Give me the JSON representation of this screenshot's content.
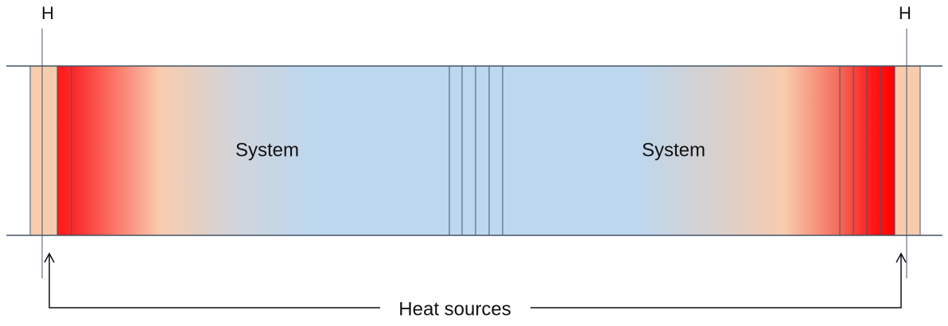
{
  "labels": {
    "left_source": "H",
    "right_source": "H"
  },
  "regions": [
    {
      "label": "System"
    },
    {
      "label": "System"
    }
  ],
  "annotation": "Heat sources"
}
